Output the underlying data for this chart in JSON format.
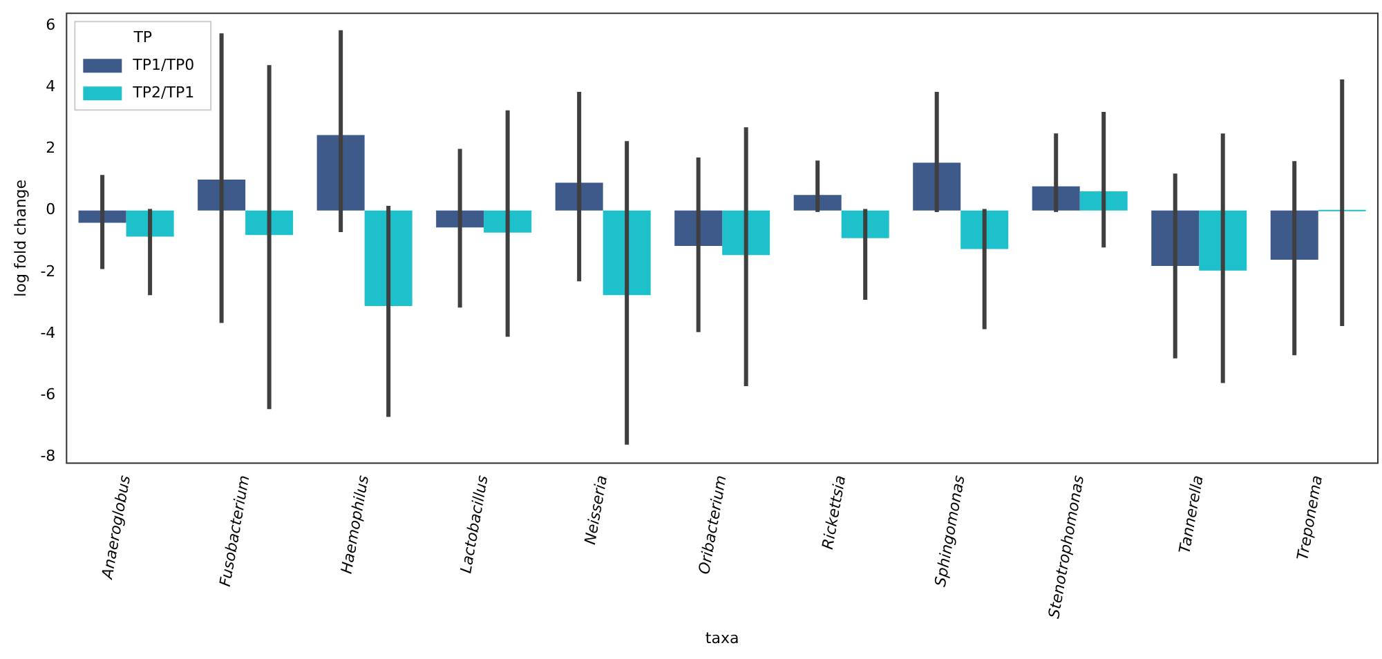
{
  "chart_data": {
    "type": "bar",
    "xlabel": "taxa",
    "ylabel": "log fold change",
    "legend_title": "TP",
    "legend": "top left",
    "grid": false,
    "categories": [
      "Anaeroglobus",
      "Fusobacterium",
      "Haemophilus",
      "Lactobacillus",
      "Neisseria",
      "Oribacterium",
      "Rickettsia",
      "Sphingomonas",
      "Stenotrophomonas",
      "Tannerella",
      "Treponema"
    ],
    "ylim": [
      -8.2,
      6.4
    ],
    "yticks": [
      -8,
      -6,
      -4,
      -2,
      0,
      2,
      4,
      6
    ],
    "series": [
      {
        "name": "TP1/TP0",
        "color": "#3d5a8a",
        "values": [
          -0.4,
          1.0,
          2.45,
          -0.55,
          0.9,
          -1.15,
          0.5,
          1.55,
          0.78,
          -1.8,
          -1.6
        ],
        "errors": [
          [
            -1.9,
            1.15
          ],
          [
            -3.65,
            5.75
          ],
          [
            -0.7,
            5.85
          ],
          [
            -3.15,
            2.0
          ],
          [
            -2.3,
            3.85
          ],
          [
            -3.95,
            1.72
          ],
          [
            -0.05,
            1.62
          ],
          [
            -0.05,
            3.85
          ],
          [
            -0.05,
            2.5
          ],
          [
            -4.8,
            1.2
          ],
          [
            -4.7,
            1.6
          ]
        ]
      },
      {
        "name": "TP2/TP1",
        "color": "#1ec0cc",
        "values": [
          -0.85,
          -0.8,
          -3.1,
          -0.72,
          -2.75,
          -1.45,
          -0.9,
          -1.25,
          0.62,
          -1.95,
          0
        ],
        "errors": [
          [
            -2.75,
            0.05
          ],
          [
            -6.45,
            4.72
          ],
          [
            -6.7,
            0.15
          ],
          [
            -4.1,
            3.25
          ],
          [
            -7.6,
            2.25
          ],
          [
            -5.7,
            2.7
          ],
          [
            -2.9,
            0.05
          ],
          [
            -3.85,
            0.05
          ],
          [
            -1.2,
            3.2
          ],
          [
            -5.6,
            2.5
          ],
          [
            -3.75,
            4.25
          ]
        ]
      }
    ]
  }
}
